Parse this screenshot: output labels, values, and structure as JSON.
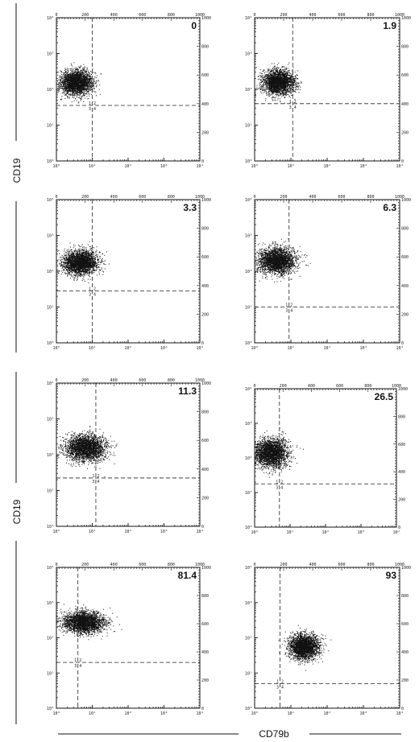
{
  "figure": {
    "ylabel_top": "CD19",
    "ylabel_bottom": "CD19",
    "xlabel": "CD79b"
  },
  "axes": {
    "left_ticks": [
      "10⁰",
      "10¹",
      "10²",
      "10³",
      "10⁴"
    ],
    "bottom_ticks": [
      "10⁰",
      "10¹",
      "10²",
      "10³",
      "10⁴"
    ],
    "top_ticks": [
      "0",
      "200",
      "400",
      "600",
      "800",
      "1000"
    ],
    "right_ticks": [
      "0",
      "200",
      "400",
      "600",
      "800",
      "1000"
    ],
    "quadrant_label_upper": "1 2",
    "quadrant_label_lower": "3 4"
  },
  "chart_data": [
    {
      "type": "scatter",
      "label": "0",
      "x_gate": 1.0,
      "y_gate": 1.55,
      "cluster": {
        "x": 0.55,
        "y": 2.2,
        "sx": 0.22,
        "sy": 0.17
      }
    },
    {
      "type": "scatter",
      "label": "1.9",
      "x_gate": 1.05,
      "y_gate": 1.6,
      "cluster": {
        "x": 0.65,
        "y": 2.2,
        "sx": 0.22,
        "sy": 0.17
      }
    },
    {
      "type": "scatter",
      "label": "3.3",
      "x_gate": 1.0,
      "y_gate": 1.45,
      "cluster": {
        "x": 0.65,
        "y": 2.25,
        "sx": 0.24,
        "sy": 0.17
      }
    },
    {
      "type": "scatter",
      "label": "6.3",
      "x_gate": 0.95,
      "y_gate": 1.0,
      "cluster": {
        "x": 0.6,
        "y": 2.3,
        "sx": 0.26,
        "sy": 0.18
      }
    },
    {
      "type": "scatter",
      "label": "11.3",
      "x_gate": 1.1,
      "y_gate": 1.35,
      "cluster": {
        "x": 0.8,
        "y": 2.2,
        "sx": 0.28,
        "sy": 0.18
      }
    },
    {
      "type": "scatter",
      "label": "26.5",
      "x_gate": 0.7,
      "y_gate": 1.25,
      "cluster": {
        "x": 0.45,
        "y": 2.15,
        "sx": 0.24,
        "sy": 0.2
      }
    },
    {
      "type": "scatter",
      "label": "81.4",
      "x_gate": 0.6,
      "y_gate": 1.3,
      "cluster": {
        "x": 0.75,
        "y": 2.45,
        "sx": 0.28,
        "sy": 0.15
      }
    },
    {
      "type": "scatter",
      "label": "93",
      "x_gate": 0.7,
      "y_gate": 0.7,
      "cluster": {
        "x": 1.35,
        "y": 1.75,
        "sx": 0.2,
        "sy": 0.17
      }
    }
  ]
}
